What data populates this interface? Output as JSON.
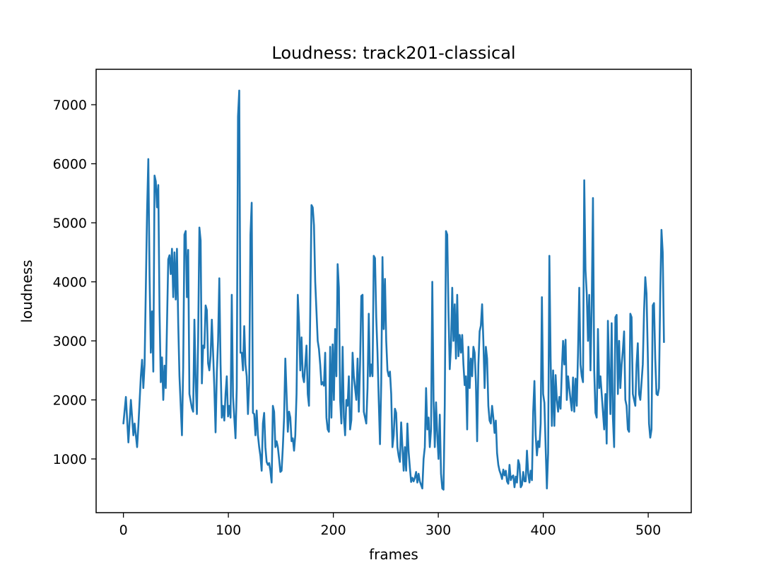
{
  "chart_data": {
    "type": "line",
    "title": "Loudness: track201-classical",
    "xlabel": "frames",
    "ylabel": "loudness",
    "xlim": [
      -26,
      541
    ],
    "ylim": [
      90,
      7600
    ],
    "xticks": [
      0,
      100,
      200,
      300,
      400,
      500
    ],
    "yticks": [
      1000,
      2000,
      3000,
      4000,
      5000,
      6000,
      7000
    ],
    "grid": false,
    "legend": "none",
    "series_color": "#1f77b4",
    "keypoints": [
      [
        0,
        1600
      ],
      [
        2,
        2050
      ],
      [
        4,
        1280
      ],
      [
        6,
        2000
      ],
      [
        8,
        1400
      ],
      [
        9,
        1600
      ],
      [
        11,
        1200
      ],
      [
        12,
        1560
      ],
      [
        14,
        2400
      ],
      [
        15,
        2680
      ],
      [
        16,
        2200
      ],
      [
        17,
        2600
      ],
      [
        19,
        5200
      ],
      [
        20,
        6080
      ],
      [
        21,
        4100
      ],
      [
        22,
        2800
      ],
      [
        23,
        3500
      ],
      [
        24,
        2480
      ],
      [
        25,
        5800
      ],
      [
        26,
        5700
      ],
      [
        27,
        5260
      ],
      [
        28,
        5640
      ],
      [
        29,
        3500
      ],
      [
        30,
        2300
      ],
      [
        31,
        2720
      ],
      [
        32,
        2000
      ],
      [
        33,
        2580
      ],
      [
        34,
        2200
      ],
      [
        36,
        4380
      ],
      [
        37,
        4450
      ],
      [
        38,
        4130
      ],
      [
        39,
        4560
      ],
      [
        40,
        3740
      ],
      [
        41,
        4500
      ],
      [
        42,
        3700
      ],
      [
        43,
        4560
      ],
      [
        44,
        3300
      ],
      [
        45,
        2400
      ],
      [
        47,
        1400
      ],
      [
        48,
        2560
      ],
      [
        49,
        4800
      ],
      [
        50,
        4860
      ],
      [
        51,
        3740
      ],
      [
        52,
        4540
      ],
      [
        53,
        2100
      ],
      [
        55,
        1860
      ],
      [
        56,
        1800
      ],
      [
        57,
        3360
      ],
      [
        58,
        2300
      ],
      [
        59,
        1760
      ],
      [
        60,
        3050
      ],
      [
        61,
        4920
      ],
      [
        62,
        4700
      ],
      [
        63,
        2280
      ],
      [
        64,
        2920
      ],
      [
        65,
        2880
      ],
      [
        66,
        3600
      ],
      [
        67,
        3520
      ],
      [
        68,
        2620
      ],
      [
        69,
        2500
      ],
      [
        70,
        2750
      ],
      [
        71,
        3360
      ],
      [
        72,
        2800
      ],
      [
        73,
        2200
      ],
      [
        74,
        1450
      ],
      [
        75,
        2460
      ],
      [
        76,
        3000
      ],
      [
        77,
        4060
      ],
      [
        78,
        2600
      ],
      [
        79,
        1700
      ],
      [
        80,
        1900
      ],
      [
        81,
        1650
      ],
      [
        82,
        2100
      ],
      [
        83,
        2400
      ],
      [
        84,
        1720
      ],
      [
        85,
        1900
      ],
      [
        86,
        1700
      ],
      [
        87,
        3780
      ],
      [
        88,
        2060
      ],
      [
        89,
        1700
      ],
      [
        90,
        1350
      ],
      [
        91,
        2200
      ],
      [
        92,
        6800
      ],
      [
        93,
        7240
      ],
      [
        94,
        2800
      ],
      [
        95,
        2800
      ],
      [
        96,
        2500
      ],
      [
        97,
        3250
      ],
      [
        98,
        2600
      ],
      [
        99,
        2400
      ],
      [
        100,
        1760
      ],
      [
        101,
        2300
      ],
      [
        102,
        4800
      ],
      [
        103,
        5340
      ],
      [
        104,
        1780
      ],
      [
        105,
        1760
      ],
      [
        106,
        1400
      ],
      [
        107,
        1820
      ],
      [
        108,
        1400
      ],
      [
        109,
        1200
      ],
      [
        110,
        1050
      ],
      [
        111,
        800
      ],
      [
        112,
        1600
      ],
      [
        113,
        1780
      ],
      [
        114,
        1200
      ],
      [
        115,
        950
      ],
      [
        116,
        900
      ],
      [
        117,
        930
      ],
      [
        118,
        800
      ],
      [
        119,
        600
      ],
      [
        120,
        1900
      ],
      [
        121,
        1800
      ],
      [
        122,
        1200
      ],
      [
        123,
        1300
      ],
      [
        124,
        1200
      ],
      [
        125,
        1000
      ],
      [
        126,
        780
      ],
      [
        127,
        800
      ],
      [
        128,
        1200
      ],
      [
        129,
        1700
      ],
      [
        130,
        2700
      ],
      [
        131,
        2100
      ],
      [
        132,
        1460
      ],
      [
        133,
        1800
      ],
      [
        134,
        1700
      ],
      [
        135,
        1300
      ],
      [
        136,
        1350
      ],
      [
        137,
        1140
      ],
      [
        138,
        1400
      ],
      [
        139,
        2100
      ],
      [
        140,
        3780
      ],
      [
        141,
        3300
      ],
      [
        142,
        2500
      ],
      [
        143,
        3060
      ],
      [
        144,
        2400
      ],
      [
        145,
        2300
      ],
      [
        146,
        2600
      ],
      [
        147,
        2920
      ],
      [
        148,
        2100
      ],
      [
        149,
        1900
      ],
      [
        150,
        3460
      ],
      [
        151,
        5300
      ],
      [
        152,
        5260
      ],
      [
        153,
        4960
      ],
      [
        154,
        4000
      ],
      [
        155,
        3500
      ],
      [
        156,
        3000
      ],
      [
        157,
        2860
      ],
      [
        158,
        2600
      ],
      [
        159,
        2260
      ],
      [
        160,
        2300
      ],
      [
        161,
        2240
      ],
      [
        162,
        2800
      ],
      [
        163,
        1700
      ],
      [
        164,
        1500
      ],
      [
        165,
        1460
      ],
      [
        166,
        2900
      ],
      [
        167,
        1700
      ],
      [
        168,
        2940
      ],
      [
        169,
        2000
      ],
      [
        170,
        3200
      ],
      [
        171,
        2400
      ],
      [
        172,
        4300
      ],
      [
        173,
        3900
      ],
      [
        174,
        2000
      ],
      [
        175,
        1600
      ],
      [
        176,
        2900
      ],
      [
        177,
        1700
      ],
      [
        178,
        1400
      ],
      [
        179,
        2000
      ],
      [
        180,
        1900
      ],
      [
        181,
        2400
      ],
      [
        182,
        1500
      ],
      [
        183,
        1660
      ],
      [
        184,
        2800
      ],
      [
        185,
        2400
      ],
      [
        186,
        2200
      ],
      [
        187,
        2000
      ],
      [
        188,
        2700
      ],
      [
        189,
        1800
      ],
      [
        190,
        2600
      ],
      [
        191,
        3760
      ],
      [
        192,
        3780
      ],
      [
        193,
        1800
      ],
      [
        194,
        1700
      ],
      [
        195,
        1600
      ],
      [
        196,
        2200
      ],
      [
        197,
        3460
      ],
      [
        198,
        2400
      ],
      [
        199,
        2600
      ],
      [
        200,
        2400
      ],
      [
        201,
        4440
      ],
      [
        202,
        4400
      ],
      [
        203,
        3400
      ],
      [
        204,
        2800
      ],
      [
        205,
        2000
      ],
      [
        206,
        1250
      ],
      [
        207,
        2300
      ],
      [
        208,
        4420
      ],
      [
        209,
        3200
      ],
      [
        210,
        4050
      ],
      [
        211,
        3000
      ],
      [
        212,
        2500
      ],
      [
        213,
        2400
      ],
      [
        214,
        2480
      ],
      [
        215,
        2100
      ],
      [
        216,
        1200
      ],
      [
        217,
        1400
      ],
      [
        218,
        1850
      ],
      [
        219,
        1780
      ],
      [
        220,
        1200
      ],
      [
        221,
        1050
      ],
      [
        222,
        950
      ],
      [
        223,
        1620
      ],
      [
        224,
        1200
      ],
      [
        225,
        800
      ],
      [
        226,
        1200
      ],
      [
        227,
        800
      ],
      [
        228,
        1600
      ],
      [
        229,
        1120
      ],
      [
        230,
        850
      ],
      [
        231,
        610
      ],
      [
        232,
        680
      ],
      [
        233,
        620
      ],
      [
        234,
        680
      ],
      [
        235,
        780
      ],
      [
        236,
        600
      ],
      [
        237,
        750
      ],
      [
        238,
        620
      ],
      [
        239,
        560
      ],
      [
        240,
        500
      ],
      [
        241,
        1000
      ],
      [
        242,
        1200
      ],
      [
        243,
        2200
      ],
      [
        244,
        1500
      ],
      [
        245,
        1700
      ],
      [
        246,
        1200
      ],
      [
        247,
        1500
      ],
      [
        248,
        4000
      ],
      [
        249,
        2000
      ],
      [
        250,
        1200
      ],
      [
        251,
        1960
      ],
      [
        252,
        1400
      ],
      [
        253,
        1000
      ],
      [
        254,
        1750
      ],
      [
        255,
        750
      ],
      [
        256,
        500
      ],
      [
        257,
        480
      ],
      [
        258,
        1900
      ],
      [
        259,
        4860
      ],
      [
        260,
        4800
      ],
      [
        261,
        3500
      ],
      [
        262,
        2520
      ],
      [
        263,
        2900
      ],
      [
        264,
        3900
      ],
      [
        265,
        3000
      ],
      [
        266,
        3620
      ],
      [
        267,
        2700
      ],
      [
        268,
        3780
      ],
      [
        269,
        2740
      ],
      [
        270,
        3100
      ],
      [
        271,
        2800
      ],
      [
        272,
        3100
      ],
      [
        273,
        2600
      ],
      [
        274,
        2250
      ],
      [
        275,
        2400
      ],
      [
        276,
        1500
      ],
      [
        277,
        2900
      ],
      [
        278,
        2200
      ],
      [
        279,
        2700
      ],
      [
        280,
        2400
      ],
      [
        281,
        2900
      ],
      [
        282,
        2800
      ],
      [
        283,
        2300
      ],
      [
        284,
        1300
      ],
      [
        285,
        2600
      ],
      [
        286,
        3160
      ],
      [
        287,
        3260
      ],
      [
        288,
        3620
      ],
      [
        289,
        3000
      ],
      [
        290,
        2200
      ],
      [
        291,
        2900
      ],
      [
        292,
        2700
      ],
      [
        293,
        1900
      ],
      [
        294,
        1650
      ],
      [
        295,
        1600
      ],
      [
        296,
        1900
      ],
      [
        297,
        1700
      ],
      [
        298,
        1440
      ],
      [
        299,
        1650
      ],
      [
        300,
        1100
      ],
      [
        301,
        900
      ],
      [
        302,
        800
      ],
      [
        303,
        740
      ],
      [
        304,
        660
      ],
      [
        305,
        820
      ],
      [
        306,
        720
      ],
      [
        307,
        800
      ],
      [
        308,
        620
      ],
      [
        309,
        580
      ],
      [
        310,
        900
      ],
      [
        311,
        640
      ],
      [
        312,
        700
      ],
      [
        313,
        720
      ],
      [
        314,
        520
      ],
      [
        315,
        700
      ],
      [
        316,
        600
      ],
      [
        317,
        980
      ],
      [
        318,
        900
      ],
      [
        319,
        520
      ],
      [
        320,
        560
      ],
      [
        321,
        780
      ],
      [
        322,
        620
      ],
      [
        323,
        620
      ],
      [
        324,
        1140
      ],
      [
        325,
        760
      ],
      [
        326,
        600
      ],
      [
        327,
        800
      ],
      [
        328,
        640
      ],
      [
        329,
        1800
      ],
      [
        330,
        2320
      ],
      [
        331,
        1400
      ],
      [
        332,
        1060
      ],
      [
        333,
        1300
      ],
      [
        334,
        1200
      ],
      [
        335,
        1600
      ],
      [
        336,
        3740
      ],
      [
        337,
        2100
      ],
      [
        338,
        1950
      ],
      [
        339,
        1200
      ],
      [
        340,
        500
      ],
      [
        341,
        1100
      ],
      [
        342,
        4440
      ],
      [
        343,
        2700
      ],
      [
        344,
        1560
      ],
      [
        345,
        2500
      ],
      [
        346,
        1560
      ],
      [
        347,
        2420
      ],
      [
        348,
        2000
      ],
      [
        349,
        1800
      ],
      [
        350,
        2050
      ],
      [
        351,
        1850
      ],
      [
        352,
        2500
      ],
      [
        353,
        3000
      ],
      [
        354,
        2600
      ],
      [
        355,
        3020
      ],
      [
        356,
        2000
      ],
      [
        357,
        2400
      ],
      [
        358,
        2200
      ],
      [
        359,
        2000
      ],
      [
        360,
        1820
      ],
      [
        361,
        2380
      ],
      [
        362,
        1800
      ],
      [
        363,
        2360
      ],
      [
        364,
        1900
      ],
      [
        365,
        2800
      ],
      [
        366,
        3900
      ],
      [
        367,
        2600
      ],
      [
        368,
        2400
      ],
      [
        369,
        2300
      ],
      [
        370,
        5720
      ],
      [
        371,
        4200
      ],
      [
        372,
        3800
      ],
      [
        373,
        3000
      ],
      [
        374,
        3780
      ],
      [
        375,
        2500
      ],
      [
        376,
        3600
      ],
      [
        377,
        5420
      ],
      [
        378,
        2500
      ],
      [
        379,
        1780
      ],
      [
        380,
        1700
      ],
      [
        381,
        3200
      ],
      [
        382,
        2200
      ],
      [
        383,
        2400
      ],
      [
        384,
        2100
      ],
      [
        385,
        1800
      ],
      [
        386,
        1500
      ],
      [
        387,
        2100
      ],
      [
        388,
        1260
      ],
      [
        389,
        3340
      ],
      [
        390,
        2500
      ],
      [
        391,
        1760
      ],
      [
        392,
        3300
      ],
      [
        393,
        1700
      ],
      [
        394,
        1200
      ],
      [
        395,
        3400
      ],
      [
        396,
        3440
      ],
      [
        397,
        2100
      ],
      [
        398,
        3000
      ],
      [
        399,
        2200
      ],
      [
        400,
        2600
      ],
      [
        401,
        2840
      ],
      [
        402,
        3160
      ],
      [
        403,
        2000
      ],
      [
        404,
        1900
      ],
      [
        405,
        1500
      ],
      [
        406,
        1460
      ],
      [
        407,
        3460
      ],
      [
        408,
        3400
      ],
      [
        409,
        2100
      ],
      [
        410,
        2000
      ],
      [
        411,
        1900
      ],
      [
        412,
        2600
      ],
      [
        413,
        2960
      ],
      [
        414,
        2100
      ],
      [
        415,
        2000
      ],
      [
        416,
        2300
      ],
      [
        417,
        2600
      ],
      [
        418,
        3500
      ],
      [
        419,
        4080
      ],
      [
        420,
        3800
      ],
      [
        421,
        2800
      ],
      [
        422,
        1600
      ],
      [
        423,
        1360
      ],
      [
        424,
        1500
      ],
      [
        425,
        3600
      ],
      [
        426,
        3640
      ],
      [
        427,
        2700
      ],
      [
        428,
        2100
      ],
      [
        429,
        2080
      ],
      [
        430,
        2200
      ],
      [
        431,
        3800
      ],
      [
        432,
        4880
      ],
      [
        433,
        4500
      ],
      [
        434,
        2980
      ]
    ],
    "x_range_max": 515
  }
}
